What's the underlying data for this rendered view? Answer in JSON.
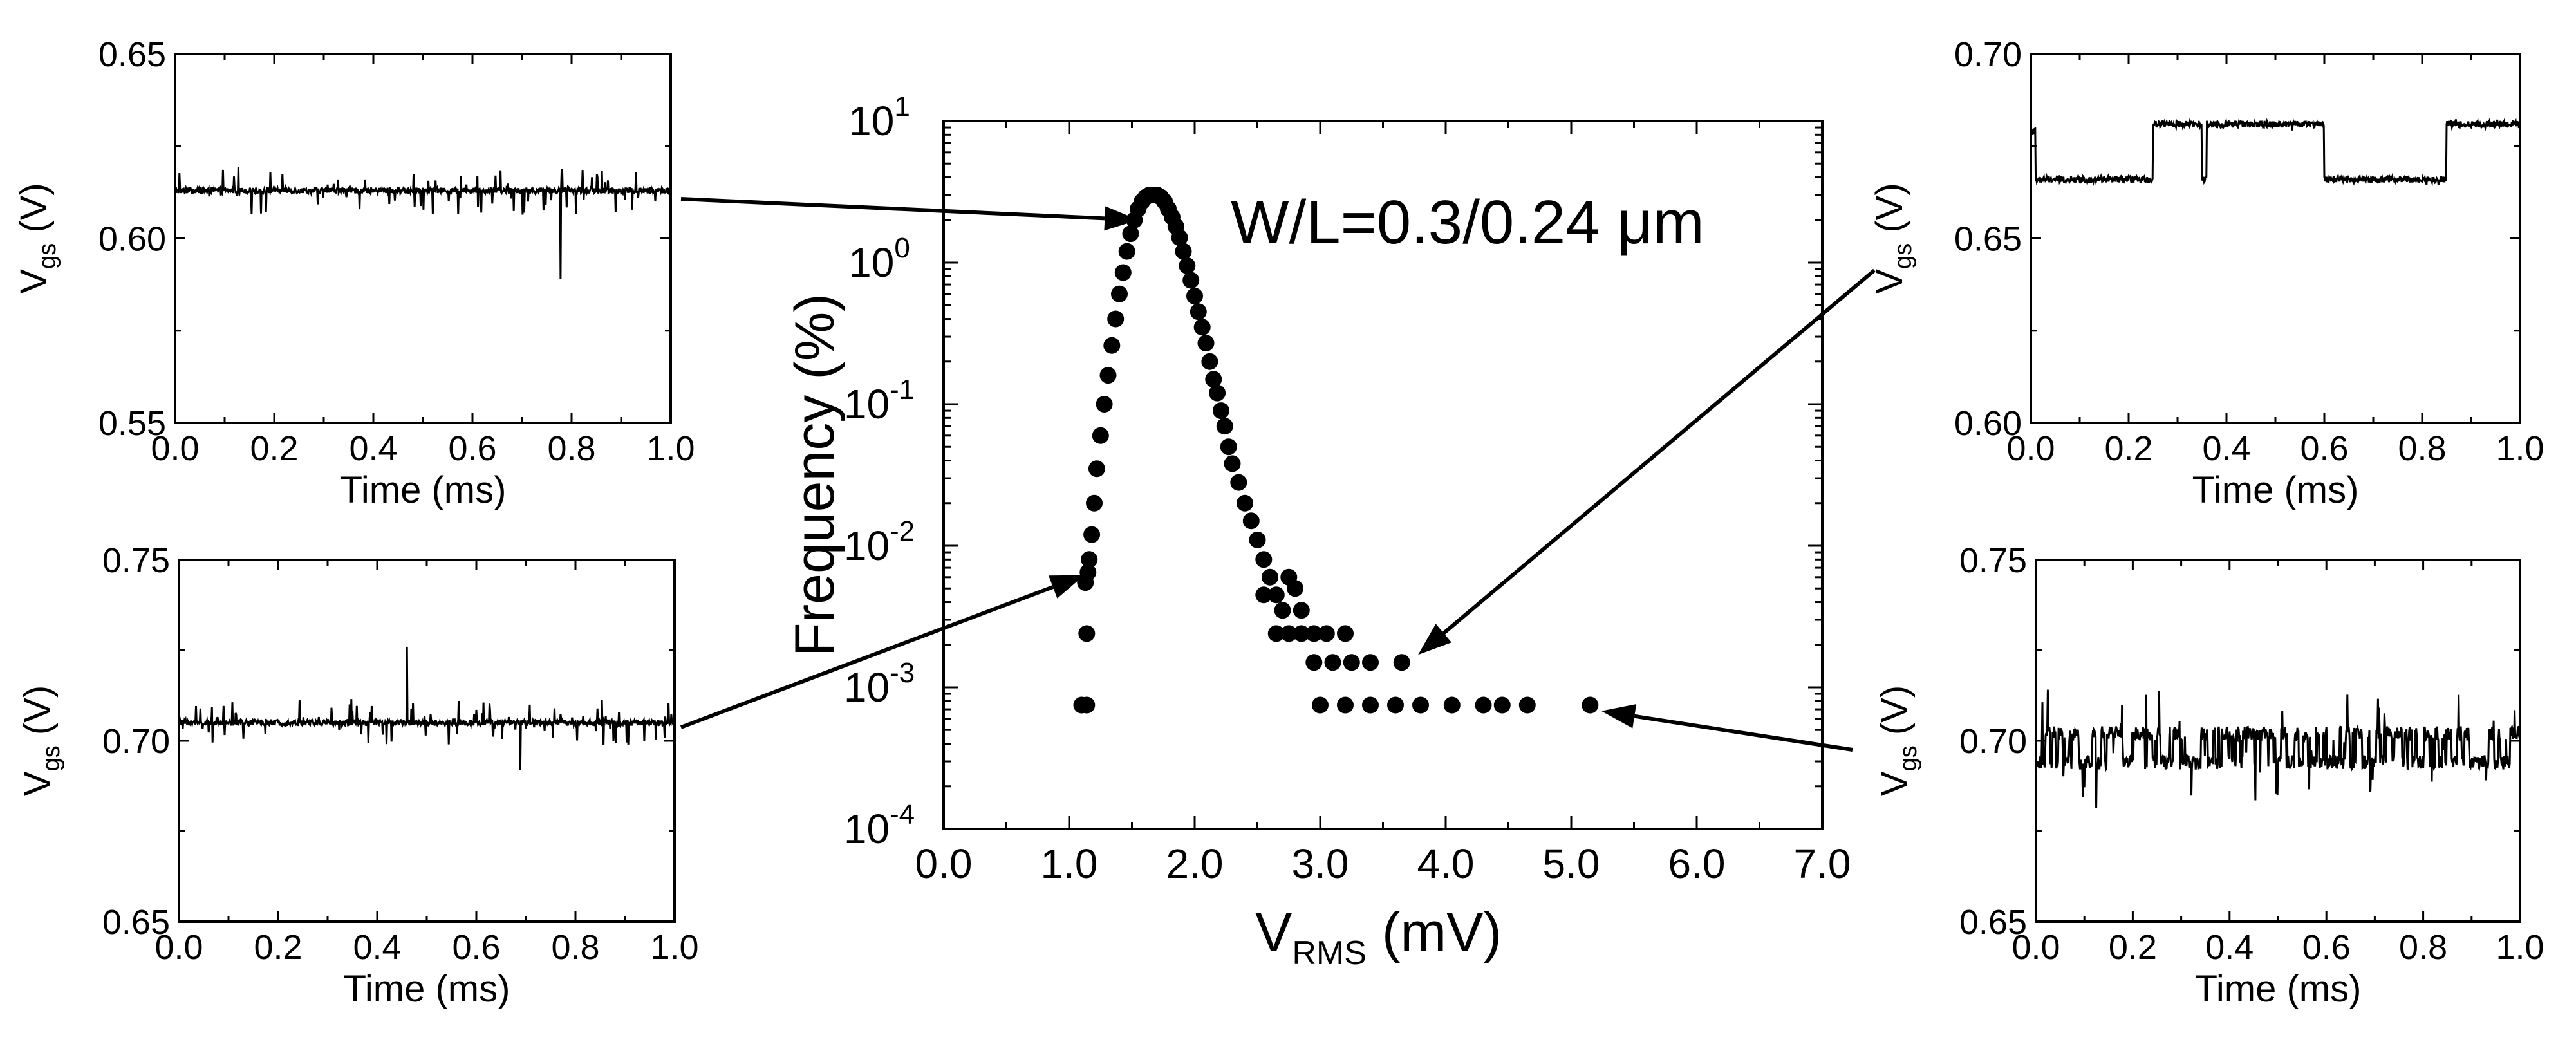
{
  "chart_data": [
    {
      "id": "main",
      "type": "scatter",
      "title": "",
      "annotation": "W/L=0.3/0.24 μm",
      "xlabel": "V",
      "xlabel_sub": "RMS",
      "xlabel_unit": " (mV)",
      "ylabel": "Frequency (%)",
      "xlim": [
        0,
        7
      ],
      "ylim_log10": [
        -4,
        1
      ],
      "yscale": "log",
      "x_ticks": [
        "0.0",
        "1.0",
        "2.0",
        "3.0",
        "4.0",
        "5.0",
        "6.0",
        "7.0"
      ],
      "y_tick_base": "10",
      "y_tick_exps": [
        "-4",
        "-3",
        "-2",
        "-1",
        "0",
        "1"
      ],
      "peak": {
        "x": 1.67,
        "y": 3.0
      },
      "points": [
        [
          1.1,
          0.00075
        ],
        [
          1.14,
          0.00075
        ],
        [
          1.14,
          0.0024
        ],
        [
          1.13,
          0.0055
        ],
        [
          1.15,
          0.0065
        ],
        [
          1.16,
          0.008
        ],
        [
          1.18,
          0.012
        ],
        [
          1.2,
          0.02
        ],
        [
          1.22,
          0.035
        ],
        [
          1.25,
          0.06
        ],
        [
          1.28,
          0.1
        ],
        [
          1.31,
          0.16
        ],
        [
          1.34,
          0.26
        ],
        [
          1.37,
          0.4
        ],
        [
          1.4,
          0.6
        ],
        [
          1.43,
          0.85
        ],
        [
          1.46,
          1.2
        ],
        [
          1.49,
          1.6
        ],
        [
          1.52,
          2.0
        ],
        [
          1.55,
          2.4
        ],
        [
          1.58,
          2.7
        ],
        [
          1.61,
          2.9
        ],
        [
          1.64,
          3.0
        ],
        [
          1.67,
          3.0
        ],
        [
          1.7,
          3.0
        ],
        [
          1.73,
          2.9
        ],
        [
          1.76,
          2.7
        ],
        [
          1.79,
          2.4
        ],
        [
          1.82,
          2.1
        ],
        [
          1.85,
          1.8
        ],
        [
          1.88,
          1.5
        ],
        [
          1.91,
          1.2
        ],
        [
          1.94,
          0.95
        ],
        [
          1.97,
          0.75
        ],
        [
          2.0,
          0.58
        ],
        [
          2.03,
          0.45
        ],
        [
          2.06,
          0.35
        ],
        [
          2.09,
          0.27
        ],
        [
          2.12,
          0.2
        ],
        [
          2.15,
          0.15
        ],
        [
          2.18,
          0.12
        ],
        [
          2.21,
          0.09
        ],
        [
          2.24,
          0.07
        ],
        [
          2.27,
          0.05
        ],
        [
          2.3,
          0.038
        ],
        [
          2.35,
          0.028
        ],
        [
          2.4,
          0.02
        ],
        [
          2.45,
          0.015
        ],
        [
          2.5,
          0.011
        ],
        [
          2.55,
          0.008
        ],
        [
          2.6,
          0.006
        ],
        [
          2.55,
          0.0045
        ],
        [
          2.65,
          0.0045
        ],
        [
          2.7,
          0.0035
        ],
        [
          2.75,
          0.006
        ],
        [
          2.8,
          0.005
        ],
        [
          2.85,
          0.0035
        ],
        [
          2.65,
          0.0024
        ],
        [
          2.75,
          0.0024
        ],
        [
          2.85,
          0.0024
        ],
        [
          2.95,
          0.0024
        ],
        [
          3.05,
          0.0024
        ],
        [
          3.2,
          0.0024
        ],
        [
          2.95,
          0.0015
        ],
        [
          3.1,
          0.0015
        ],
        [
          3.25,
          0.0015
        ],
        [
          3.4,
          0.0015
        ],
        [
          3.65,
          0.0015
        ],
        [
          3.0,
          0.00075
        ],
        [
          3.2,
          0.00075
        ],
        [
          3.4,
          0.00075
        ],
        [
          3.6,
          0.00075
        ],
        [
          3.8,
          0.00075
        ],
        [
          4.05,
          0.00075
        ],
        [
          4.3,
          0.00075
        ],
        [
          4.45,
          0.00075
        ],
        [
          4.65,
          0.00075
        ],
        [
          5.15,
          0.00075
        ]
      ]
    },
    {
      "id": "trace-top-left",
      "type": "line",
      "xlabel": "Time (ms)",
      "ylabel": "V",
      "ylabel_sub": "gs",
      "ylabel_unit": " (V)",
      "xlim": [
        0,
        1
      ],
      "ylim": [
        0.55,
        0.65
      ],
      "x_ticks": [
        "0.0",
        "0.2",
        "0.4",
        "0.6",
        "0.8",
        "1.0"
      ],
      "y_ticks": [
        "0.55",
        "0.60",
        "0.65"
      ],
      "signal": "constant level with sparse spikes",
      "levels": [
        0.613
      ],
      "switch_times": []
    },
    {
      "id": "trace-bottom-left",
      "type": "line",
      "xlabel": "Time (ms)",
      "ylabel": "V",
      "ylabel_sub": "gs",
      "ylabel_unit": " (V)",
      "xlim": [
        0,
        1
      ],
      "ylim": [
        0.65,
        0.75
      ],
      "x_ticks": [
        "0.0",
        "0.2",
        "0.4",
        "0.6",
        "0.8",
        "1.0"
      ],
      "y_ticks": [
        "0.65",
        "0.70",
        "0.75"
      ],
      "signal": "constant level with dense spikes",
      "levels": [
        0.705
      ],
      "switch_times": []
    },
    {
      "id": "trace-top-right",
      "type": "line",
      "xlabel": "Time (ms)",
      "ylabel": "V",
      "ylabel_sub": "gs",
      "ylabel_unit": " (V)",
      "xlim": [
        0,
        1
      ],
      "ylim": [
        0.6,
        0.7
      ],
      "x_ticks": [
        "0.0",
        "0.2",
        "0.4",
        "0.6",
        "0.8",
        "1.0"
      ],
      "y_ticks": [
        "0.60",
        "0.65",
        "0.70"
      ],
      "signal": "two-level random telegraph noise",
      "levels": [
        0.666,
        0.681
      ],
      "switch_times": [
        0.01,
        0.25,
        0.35,
        0.36,
        0.6,
        0.85
      ]
    },
    {
      "id": "trace-bottom-right",
      "type": "line",
      "xlabel": "Time (ms)",
      "ylabel": "V",
      "ylabel_sub": "gs",
      "ylabel_unit": " (V)",
      "xlim": [
        0,
        1
      ],
      "ylim": [
        0.65,
        0.75
      ],
      "x_ticks": [
        "0.0",
        "0.2",
        "0.4",
        "0.6",
        "0.8",
        "1.0"
      ],
      "y_ticks": [
        "0.65",
        "0.70",
        "0.75"
      ],
      "signal": "fast multi-level switching noise",
      "levels": [
        0.694,
        0.702
      ],
      "switch_times": []
    }
  ]
}
